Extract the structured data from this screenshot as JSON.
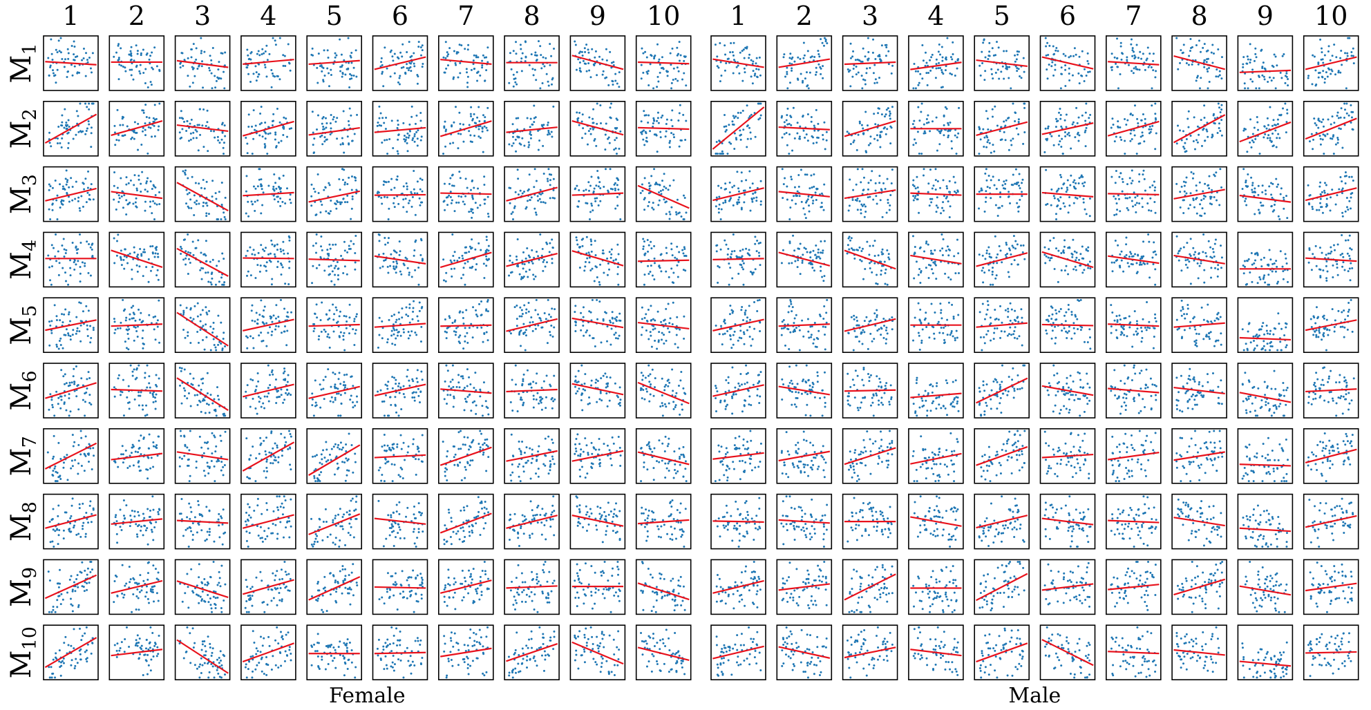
{
  "chart_data": {
    "type": "scatter",
    "layout": "grid-of-small-multiples",
    "groups": [
      {
        "name": "Female",
        "label": "Female"
      },
      {
        "name": "Male",
        "label": "Male"
      }
    ],
    "column_labels": [
      "1",
      "2",
      "3",
      "4",
      "5",
      "6",
      "7",
      "8",
      "9",
      "10"
    ],
    "row_labels": [
      {
        "main": "M",
        "sub": "1"
      },
      {
        "main": "M",
        "sub": "2"
      },
      {
        "main": "M",
        "sub": "3"
      },
      {
        "main": "M",
        "sub": "4"
      },
      {
        "main": "M",
        "sub": "5"
      },
      {
        "main": "M",
        "sub": "6"
      },
      {
        "main": "M",
        "sub": "7"
      },
      {
        "main": "M",
        "sub": "8"
      },
      {
        "main": "M",
        "sub": "9"
      },
      {
        "main": "M",
        "sub": "10"
      }
    ],
    "xlim": [
      0,
      1
    ],
    "ylim": [
      0,
      1
    ],
    "axis_ticks": false,
    "grid": false,
    "points_per_panel": 60,
    "colors": {
      "points": "#1f77b4",
      "fit_line": "#e8111b",
      "frame": "#000000"
    },
    "fit_lines": {
      "Female": [
        [
          [
            0.53,
            0.47
          ],
          [
            0.52,
            0.52
          ],
          [
            0.55,
            0.42
          ],
          [
            0.48,
            0.57
          ],
          [
            0.48,
            0.55
          ],
          [
            0.38,
            0.62
          ],
          [
            0.57,
            0.48
          ],
          [
            0.51,
            0.51
          ],
          [
            0.65,
            0.38
          ],
          [
            0.52,
            0.49
          ]
        ],
        [
          [
            0.22,
            0.78
          ],
          [
            0.37,
            0.65
          ],
          [
            0.57,
            0.45
          ],
          [
            0.36,
            0.64
          ],
          [
            0.38,
            0.52
          ],
          [
            0.43,
            0.52
          ],
          [
            0.35,
            0.65
          ],
          [
            0.43,
            0.53
          ],
          [
            0.65,
            0.38
          ],
          [
            0.52,
            0.49
          ]
        ],
        [
          [
            0.37,
            0.61
          ],
          [
            0.55,
            0.42
          ],
          [
            0.73,
            0.18
          ],
          [
            0.47,
            0.53
          ],
          [
            0.35,
            0.56
          ],
          [
            0.48,
            0.49
          ],
          [
            0.52,
            0.5
          ],
          [
            0.37,
            0.63
          ],
          [
            0.48,
            0.52
          ],
          [
            0.67,
            0.23
          ]
        ],
        [
          [
            0.52,
            0.52
          ],
          [
            0.68,
            0.35
          ],
          [
            0.72,
            0.18
          ],
          [
            0.53,
            0.52
          ],
          [
            0.51,
            0.48
          ],
          [
            0.57,
            0.42
          ],
          [
            0.35,
            0.64
          ],
          [
            0.37,
            0.62
          ],
          [
            0.67,
            0.38
          ],
          [
            0.47,
            0.49
          ]
        ],
        [
          [
            0.4,
            0.6
          ],
          [
            0.48,
            0.52
          ],
          [
            0.75,
            0.1
          ],
          [
            0.39,
            0.61
          ],
          [
            0.48,
            0.51
          ],
          [
            0.46,
            0.53
          ],
          [
            0.48,
            0.5
          ],
          [
            0.38,
            0.62
          ],
          [
            0.63,
            0.45
          ],
          [
            0.55,
            0.43
          ]
        ],
        [
          [
            0.35,
            0.65
          ],
          [
            0.52,
            0.49
          ],
          [
            0.75,
            0.12
          ],
          [
            0.38,
            0.62
          ],
          [
            0.35,
            0.58
          ],
          [
            0.4,
            0.62
          ],
          [
            0.53,
            0.45
          ],
          [
            0.48,
            0.52
          ],
          [
            0.63,
            0.42
          ],
          [
            0.66,
            0.25
          ]
        ],
        [
          [
            0.25,
            0.75
          ],
          [
            0.43,
            0.55
          ],
          [
            0.58,
            0.43
          ],
          [
            0.21,
            0.77
          ],
          [
            0.13,
            0.72
          ],
          [
            0.47,
            0.52
          ],
          [
            0.32,
            0.67
          ],
          [
            0.4,
            0.6
          ],
          [
            0.4,
            0.6
          ],
          [
            0.58,
            0.34
          ]
        ],
        [
          [
            0.37,
            0.63
          ],
          [
            0.45,
            0.55
          ],
          [
            0.52,
            0.47
          ],
          [
            0.37,
            0.63
          ],
          [
            0.25,
            0.65
          ],
          [
            0.56,
            0.45
          ],
          [
            0.28,
            0.66
          ],
          [
            0.37,
            0.62
          ],
          [
            0.62,
            0.41
          ],
          [
            0.46,
            0.53
          ]
        ],
        [
          [
            0.28,
            0.73
          ],
          [
            0.38,
            0.62
          ],
          [
            0.62,
            0.3
          ],
          [
            0.36,
            0.64
          ],
          [
            0.25,
            0.7
          ],
          [
            0.5,
            0.48
          ],
          [
            0.38,
            0.63
          ],
          [
            0.48,
            0.52
          ],
          [
            0.51,
            0.51
          ],
          [
            0.58,
            0.26
          ]
        ],
        [
          [
            0.21,
            0.79
          ],
          [
            0.44,
            0.56
          ],
          [
            0.75,
            0.1
          ],
          [
            0.32,
            0.68
          ],
          [
            0.48,
            0.48
          ],
          [
            0.48,
            0.5
          ],
          [
            0.42,
            0.58
          ],
          [
            0.33,
            0.67
          ],
          [
            0.7,
            0.28
          ],
          [
            0.6,
            0.35
          ]
        ]
      ],
      "Male": [
        [
          [
            0.58,
            0.42
          ],
          [
            0.42,
            0.58
          ],
          [
            0.48,
            0.52
          ],
          [
            0.38,
            0.52
          ],
          [
            0.56,
            0.44
          ],
          [
            0.62,
            0.39
          ],
          [
            0.53,
            0.47
          ],
          [
            0.64,
            0.38
          ],
          [
            0.33,
            0.37
          ],
          [
            0.38,
            0.62
          ]
        ],
        [
          [
            0.1,
            0.92
          ],
          [
            0.53,
            0.48
          ],
          [
            0.35,
            0.65
          ],
          [
            0.5,
            0.5
          ],
          [
            0.37,
            0.63
          ],
          [
            0.39,
            0.61
          ],
          [
            0.36,
            0.64
          ],
          [
            0.23,
            0.77
          ],
          [
            0.25,
            0.63
          ],
          [
            0.3,
            0.7
          ]
        ],
        [
          [
            0.38,
            0.62
          ],
          [
            0.55,
            0.45
          ],
          [
            0.42,
            0.58
          ],
          [
            0.52,
            0.48
          ],
          [
            0.5,
            0.5
          ],
          [
            0.53,
            0.45
          ],
          [
            0.51,
            0.49
          ],
          [
            0.41,
            0.59
          ],
          [
            0.48,
            0.35
          ],
          [
            0.38,
            0.62
          ]
        ],
        [
          [
            0.5,
            0.52
          ],
          [
            0.64,
            0.38
          ],
          [
            0.68,
            0.32
          ],
          [
            0.58,
            0.42
          ],
          [
            0.37,
            0.63
          ],
          [
            0.65,
            0.35
          ],
          [
            0.57,
            0.43
          ],
          [
            0.58,
            0.42
          ],
          [
            0.33,
            0.33
          ],
          [
            0.53,
            0.47
          ]
        ],
        [
          [
            0.39,
            0.61
          ],
          [
            0.48,
            0.52
          ],
          [
            0.38,
            0.62
          ],
          [
            0.5,
            0.5
          ],
          [
            0.46,
            0.54
          ],
          [
            0.51,
            0.49
          ],
          [
            0.52,
            0.48
          ],
          [
            0.46,
            0.54
          ],
          [
            0.27,
            0.23
          ],
          [
            0.4,
            0.6
          ]
        ],
        [
          [
            0.39,
            0.61
          ],
          [
            0.58,
            0.42
          ],
          [
            0.49,
            0.51
          ],
          [
            0.37,
            0.45
          ],
          [
            0.26,
            0.74
          ],
          [
            0.59,
            0.41
          ],
          [
            0.54,
            0.46
          ],
          [
            0.56,
            0.44
          ],
          [
            0.47,
            0.28
          ],
          [
            0.48,
            0.53
          ]
        ],
        [
          [
            0.44,
            0.56
          ],
          [
            0.41,
            0.59
          ],
          [
            0.34,
            0.66
          ],
          [
            0.35,
            0.55
          ],
          [
            0.32,
            0.68
          ],
          [
            0.47,
            0.53
          ],
          [
            0.43,
            0.57
          ],
          [
            0.42,
            0.58
          ],
          [
            0.35,
            0.32
          ],
          [
            0.37,
            0.63
          ]
        ],
        [
          [
            0.51,
            0.49
          ],
          [
            0.53,
            0.47
          ],
          [
            0.5,
            0.5
          ],
          [
            0.59,
            0.41
          ],
          [
            0.38,
            0.62
          ],
          [
            0.56,
            0.44
          ],
          [
            0.52,
            0.48
          ],
          [
            0.58,
            0.42
          ],
          [
            0.38,
            0.32
          ],
          [
            0.39,
            0.61
          ]
        ],
        [
          [
            0.38,
            0.62
          ],
          [
            0.44,
            0.56
          ],
          [
            0.25,
            0.75
          ],
          [
            0.48,
            0.48
          ],
          [
            0.24,
            0.76
          ],
          [
            0.44,
            0.56
          ],
          [
            0.45,
            0.55
          ],
          [
            0.35,
            0.65
          ],
          [
            0.52,
            0.35
          ],
          [
            0.43,
            0.57
          ]
        ],
        [
          [
            0.38,
            0.62
          ],
          [
            0.61,
            0.39
          ],
          [
            0.4,
            0.6
          ],
          [
            0.56,
            0.44
          ],
          [
            0.32,
            0.68
          ],
          [
            0.75,
            0.25
          ],
          [
            0.52,
            0.48
          ],
          [
            0.55,
            0.45
          ],
          [
            0.34,
            0.25
          ],
          [
            0.49,
            0.51
          ]
        ]
      ]
    }
  }
}
